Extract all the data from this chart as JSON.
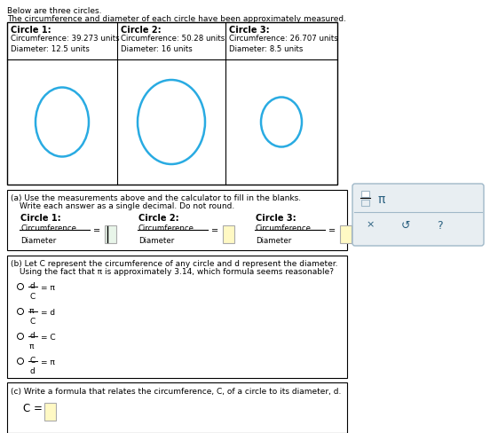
{
  "title_line1": "Below are three circles.",
  "title_line2": "The circumference and diameter of each circle have been approximately measured.",
  "circle1_label": "Circle 1:",
  "circle1_circ": "Circumference: 39.273 units",
  "circle1_diam": "Diameter: 12.5 units",
  "circle2_label": "Circle 2:",
  "circle2_circ": "Circumference: 50.28 units",
  "circle2_diam": "Diameter: 16 units",
  "circle3_label": "Circle 3:",
  "circle3_circ": "Circumference: 26.707 units",
  "circle3_diam": "Diameter: 8.5 units",
  "circle_color": "#29ABE2",
  "bg_color": "#ffffff",
  "section_a_line1": "(a) Use the measurements above and the calculator to fill in the blanks.",
  "section_a_line2": "    Write each answer as a single decimal. Do not round.",
  "section_b_line1": "(b) Let C represent the circumference of any circle and d represent the diameter.",
  "section_b_line2": "    Using the fact that π is approximately 3.14, which formula seems reasonable?",
  "section_c": "(c) Write a formula that relates the circumference, C, of a circle to its diameter, d.",
  "calc_pi": "π",
  "input_yellow": "#fff9c4",
  "input_green": "#e8f5e9",
  "calc_bg": "#e8eef2",
  "calc_border": "#a0b8c8"
}
